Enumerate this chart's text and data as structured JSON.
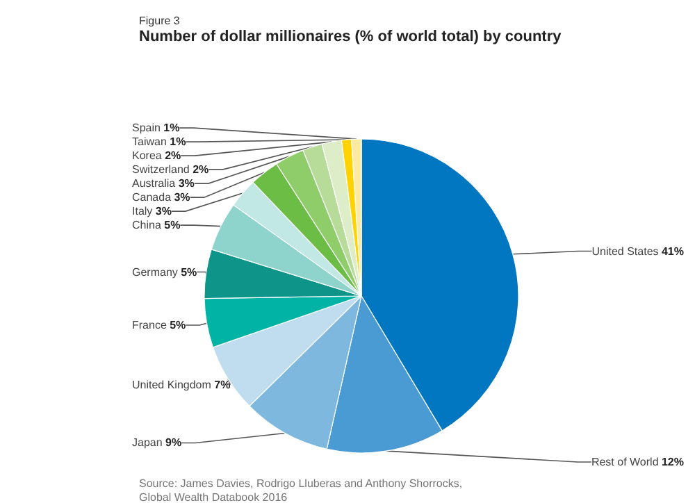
{
  "chart_data": {
    "type": "pie",
    "subtitle": "Figure 3",
    "title": "Number of dollar millionaires (% of world total) by country",
    "categories": [
      "United States",
      "Rest of World",
      "Japan",
      "United Kingdom",
      "France",
      "Germany",
      "China",
      "Italy",
      "Canada",
      "Australia",
      "Switzerland",
      "Korea",
      "Taiwan",
      "Spain"
    ],
    "values": [
      41,
      12,
      9,
      7,
      5,
      5,
      5,
      3,
      3,
      3,
      2,
      2,
      1,
      1
    ],
    "value_labels": [
      "41%",
      "12%",
      "9%",
      "7%",
      "5%",
      "5%",
      "5%",
      "3%",
      "3%",
      "3%",
      "2%",
      "2%",
      "1%",
      "1%"
    ],
    "colors": [
      "#0077c0",
      "#4a9ad4",
      "#7fb8de",
      "#c0dcef",
      "#00b3a4",
      "#0e9488",
      "#8fd3cd",
      "#c2e8e6",
      "#6cbd45",
      "#8fcc6a",
      "#b7dc9a",
      "#dcedc8",
      "#ffd200",
      "#fde9a0"
    ],
    "annotations": [
      "Source: James Davies, Rodrigo Lluberas and Anthony Shorrocks, Global Wealth Databook 2016"
    ]
  }
}
